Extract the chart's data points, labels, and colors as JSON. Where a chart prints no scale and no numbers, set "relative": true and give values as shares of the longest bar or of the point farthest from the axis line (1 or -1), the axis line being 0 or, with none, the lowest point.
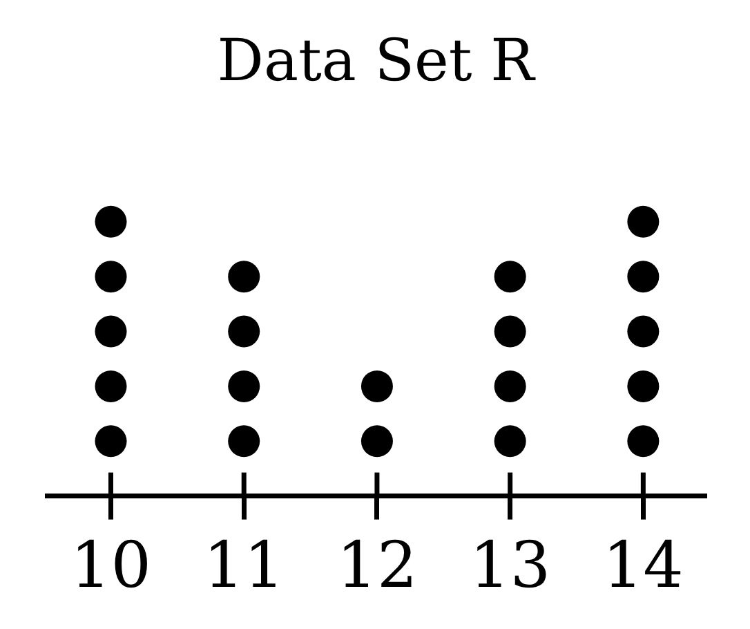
{
  "chart_data": {
    "type": "scatter",
    "title": "Data Set R",
    "x": [
      10,
      10,
      10,
      10,
      10,
      11,
      11,
      11,
      11,
      12,
      12,
      13,
      13,
      13,
      13,
      14,
      14,
      14,
      14,
      14
    ],
    "values": [
      0.2,
      0.4,
      0.6,
      0.8,
      1,
      0.2,
      0.4,
      0.6,
      0.8,
      0.2,
      0.4,
      0.2,
      0.4,
      0.6,
      0.8,
      0.2,
      0.4,
      0.6,
      0.8,
      1
    ],
    "relative": true,
    "color": "#000000",
    "marker": "circle",
    "xlim": [
      9.52,
      14.46
    ],
    "xticks": [
      10,
      11,
      12,
      13,
      14
    ]
  }
}
